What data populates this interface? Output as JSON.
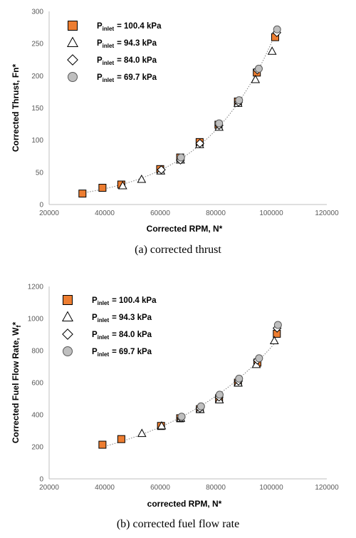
{
  "colors": {
    "orange": "#ED7D31",
    "gray_marker": "#BFBFBF",
    "axis": "#BFBFBF",
    "trend": "#7F7F7F"
  },
  "chart_data": [
    {
      "type": "scatter",
      "caption": "(a)  corrected  thrust",
      "xlabel": "Corrected RPM, N*",
      "ylabel": "Corrected Thrust, Fn*",
      "xlim": [
        20000,
        120000
      ],
      "ylim": [
        0,
        300
      ],
      "x_ticks": [
        "20000",
        "40000",
        "60000",
        "80000",
        "100000",
        "120000"
      ],
      "y_ticks": [
        "0",
        "50",
        "100",
        "150",
        "200",
        "250",
        "300"
      ],
      "legend_position": "top-left",
      "trendline": "dotted",
      "series": [
        {
          "name_sub": "inlet",
          "name_value": "= 100.4 kPa",
          "marker": "square",
          "points": [
            [
              32000,
              17
            ],
            [
              39200,
              26
            ],
            [
              46000,
              31
            ],
            [
              60000,
              55
            ],
            [
              67200,
              73
            ],
            [
              74200,
              97
            ],
            [
              81000,
              124
            ],
            [
              88000,
              160
            ],
            [
              94800,
              205
            ],
            [
              101400,
              260
            ]
          ]
        },
        {
          "name_sub": "inlet",
          "name_value": "= 94.3 kPa",
          "marker": "triangle",
          "points": [
            [
              46500,
              29
            ],
            [
              53300,
              39
            ],
            [
              60200,
              52
            ],
            [
              67300,
              69
            ],
            [
              74200,
              93
            ],
            [
              81200,
              120
            ],
            [
              88000,
              157
            ],
            [
              94300,
              194
            ],
            [
              100300,
              238
            ]
          ]
        },
        {
          "name_sub": "inlet",
          "name_value": "= 84.0 kPa",
          "marker": "diamond",
          "points": [
            [
              60400,
              54
            ],
            [
              67300,
              69
            ],
            [
              74300,
              95
            ],
            [
              81200,
              123
            ],
            [
              88200,
              159
            ],
            [
              95000,
              209
            ],
            [
              102000,
              267
            ]
          ]
        },
        {
          "name_sub": "inlet",
          "name_value": "= 69.7 kPa",
          "marker": "circle",
          "points": [
            [
              67500,
              73
            ],
            [
              81200,
              126
            ],
            [
              88400,
              162
            ],
            [
              95500,
              211
            ],
            [
              102100,
              272
            ]
          ]
        }
      ]
    },
    {
      "type": "scatter",
      "caption": "(b)  corrected  fuel  flow  rate",
      "xlabel": "corrected RPM, N*",
      "ylabel": "Corrected Fuel Flow Rate, W",
      "ylabel_sub": "f",
      "ylabel_end": "*",
      "xlim": [
        20000,
        120000
      ],
      "ylim": [
        0,
        1200
      ],
      "x_ticks": [
        "20000",
        "40000",
        "60000",
        "80000",
        "100000",
        "120000"
      ],
      "y_ticks": [
        "0",
        "200",
        "400",
        "600",
        "800",
        "1000",
        "1200"
      ],
      "legend_position": "top-left",
      "trendline": "dotted",
      "series": [
        {
          "name_sub": "inlet",
          "name_value": "= 100.4 kPa",
          "marker": "square",
          "points": [
            [
              39200,
              213
            ],
            [
              46000,
              248
            ],
            [
              60300,
              330
            ],
            [
              67200,
              378
            ],
            [
              74300,
              435
            ],
            [
              81200,
              503
            ],
            [
              88000,
              600
            ],
            [
              95000,
              725
            ],
            [
              102000,
              905
            ]
          ]
        },
        {
          "name_sub": "inlet",
          "name_value": "= 94.3 kPa",
          "marker": "triangle",
          "points": [
            [
              53400,
              283
            ],
            [
              60500,
              330
            ],
            [
              67400,
              378
            ],
            [
              74400,
              432
            ],
            [
              81300,
              492
            ],
            [
              88100,
              597
            ],
            [
              94600,
              713
            ],
            [
              101100,
              861
            ]
          ]
        },
        {
          "name_sub": "inlet",
          "name_value": "= 84.0 kPa",
          "marker": "diamond",
          "points": [
            [
              67500,
              380
            ],
            [
              74300,
              440
            ],
            [
              81200,
              510
            ],
            [
              88200,
              610
            ],
            [
              95000,
              740
            ],
            [
              102100,
              940
            ]
          ]
        },
        {
          "name_sub": "inlet",
          "name_value": "= 69.7 kPa",
          "marker": "circle",
          "points": [
            [
              67700,
              388
            ],
            [
              74700,
              452
            ],
            [
              81400,
              525
            ],
            [
              88400,
              625
            ],
            [
              95600,
              752
            ],
            [
              102400,
              960
            ]
          ]
        }
      ]
    }
  ]
}
